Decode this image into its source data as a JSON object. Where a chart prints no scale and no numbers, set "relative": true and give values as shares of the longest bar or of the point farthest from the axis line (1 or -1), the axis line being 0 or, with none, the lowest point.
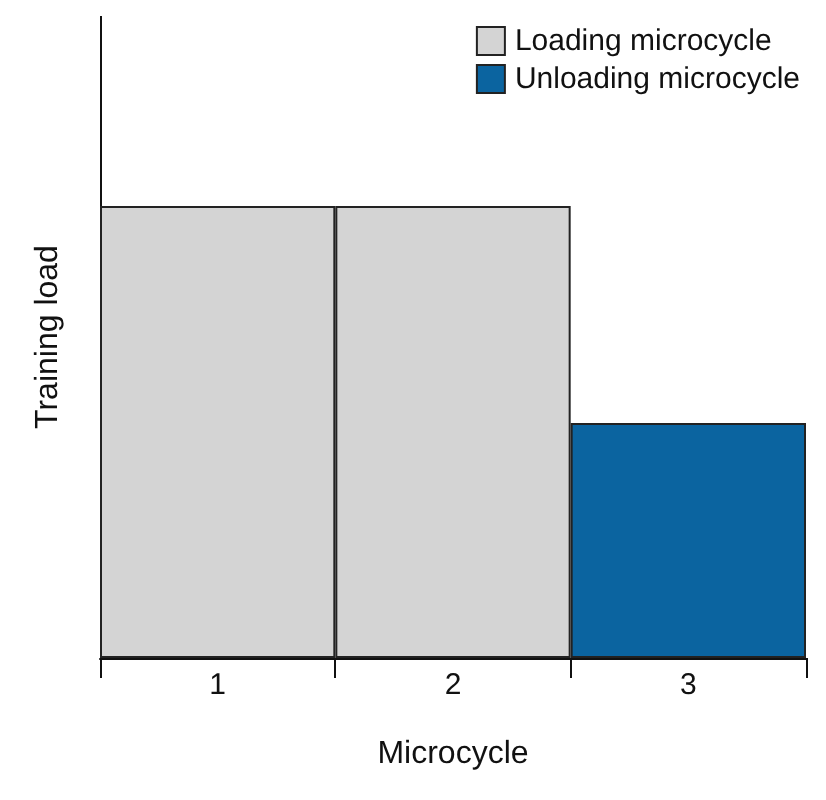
{
  "chart_data": {
    "type": "bar",
    "relative": true,
    "xlabel": "Microcycle",
    "ylabel": "Training load",
    "categories": [
      "1",
      "2",
      "3"
    ],
    "series": [
      {
        "name": "Loading microcycle",
        "color": "#d4d4d4",
        "values": [
          1,
          1,
          null
        ]
      },
      {
        "name": "Unloading microcycle",
        "color": "#0b64a0",
        "values": [
          null,
          null,
          0.52
        ]
      }
    ],
    "legend": "top right",
    "grid": false
  }
}
